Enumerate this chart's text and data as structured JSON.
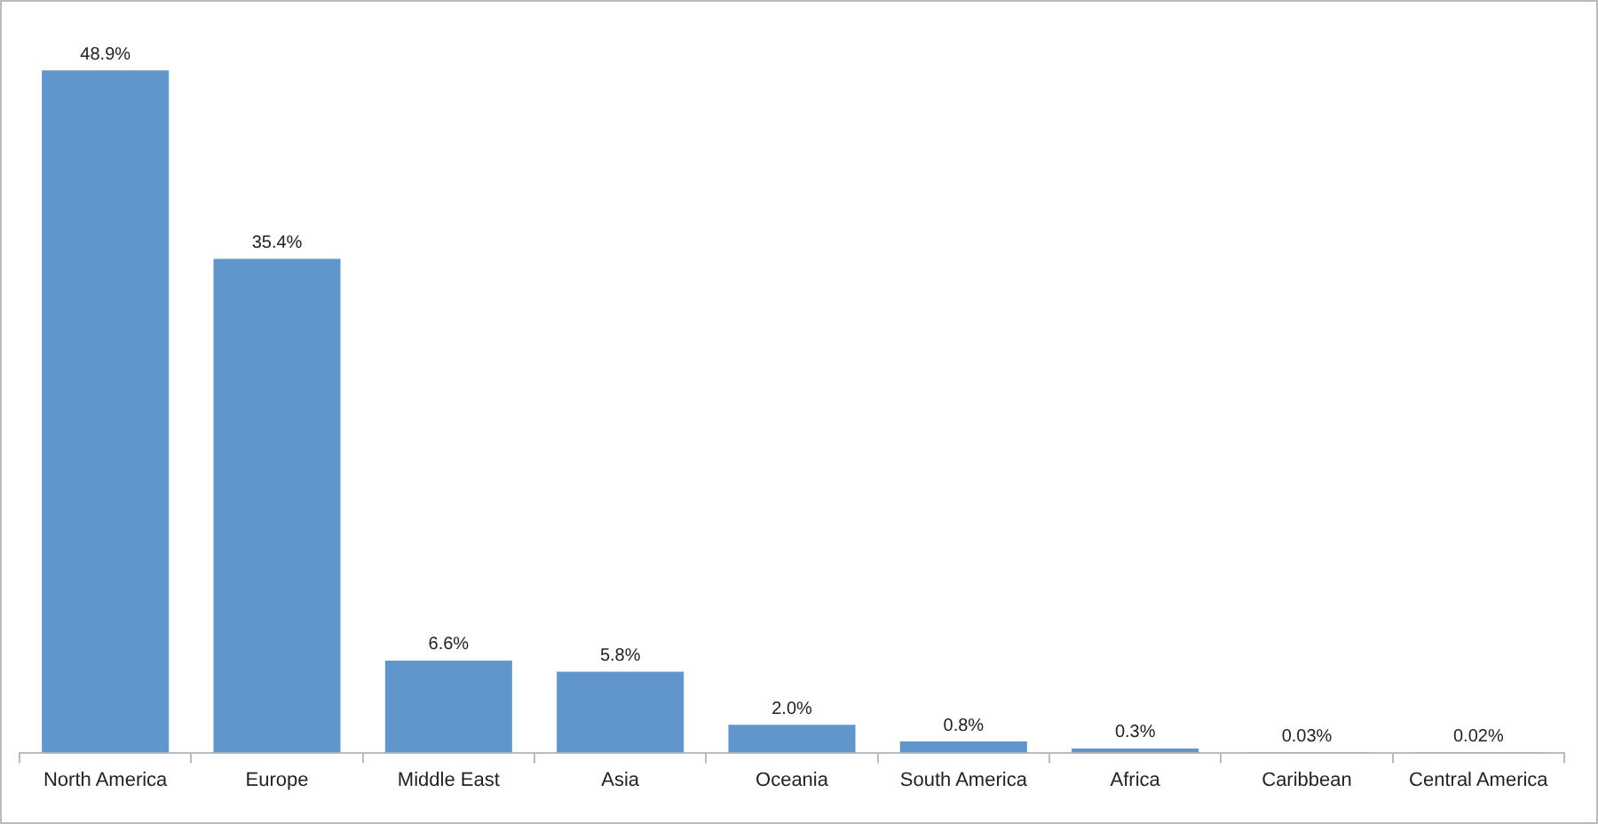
{
  "chart_data": {
    "type": "bar",
    "categories": [
      "North America",
      "Europe",
      "Middle East",
      "Asia",
      "Oceania",
      "South America",
      "Africa",
      "Caribbean",
      "Central America"
    ],
    "values": [
      48.9,
      35.4,
      6.6,
      5.8,
      2.0,
      0.8,
      0.3,
      0.03,
      0.02
    ],
    "value_labels": [
      "48.9%",
      "35.4%",
      "6.6%",
      "5.8%",
      "2.0%",
      "0.8%",
      "0.3%",
      "0.03%",
      "0.02%"
    ],
    "color": "#6096cc",
    "grid": false,
    "legend": false
  }
}
